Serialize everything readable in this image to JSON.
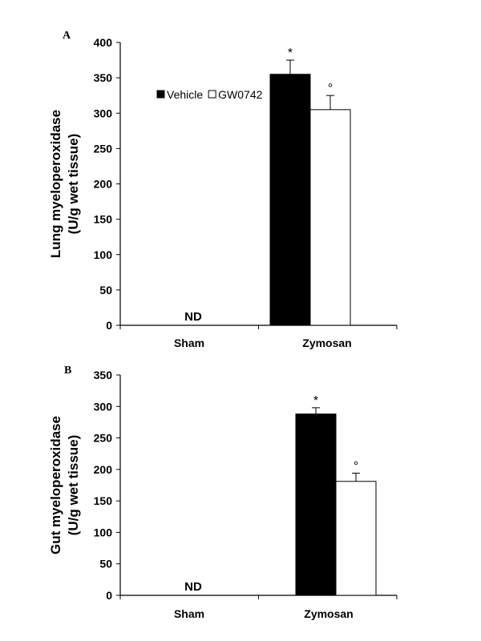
{
  "chart_data": [
    {
      "type": "bar",
      "panel": "A",
      "ylabel": [
        "Lung myeloperoxidase",
        "(U/g wet tissue)"
      ],
      "ylim": [
        0,
        400
      ],
      "yticks": [
        0,
        50,
        100,
        150,
        200,
        250,
        300,
        350,
        400
      ],
      "categories": [
        "Sham",
        "Zymosan"
      ],
      "series": [
        {
          "name": "Vehicle",
          "color": "#000000",
          "values": [
            null,
            355
          ],
          "errors": [
            null,
            20
          ],
          "markers": [
            "",
            "*"
          ]
        },
        {
          "name": "GW0742",
          "color": "#ffffff",
          "values": [
            null,
            305
          ],
          "errors": [
            null,
            20
          ],
          "markers": [
            "",
            "°"
          ]
        }
      ],
      "annotations": [
        {
          "category": "Sham",
          "text": "ND"
        }
      ],
      "legend": "inside-top-left"
    },
    {
      "type": "bar",
      "panel": "B",
      "ylabel": [
        "Gut myeloperoxidase",
        "(U/g wet tissue)"
      ],
      "ylim": [
        0,
        350
      ],
      "yticks": [
        0,
        50,
        100,
        150,
        200,
        250,
        300,
        350
      ],
      "categories": [
        "Sham",
        "Zymosan"
      ],
      "series": [
        {
          "name": "Vehicle",
          "color": "#000000",
          "values": [
            null,
            288
          ],
          "errors": [
            null,
            10
          ],
          "markers": [
            "",
            "*"
          ]
        },
        {
          "name": "GW0742",
          "color": "#ffffff",
          "values": [
            null,
            181
          ],
          "errors": [
            null,
            13
          ],
          "markers": [
            "",
            "°"
          ]
        }
      ],
      "annotations": [
        {
          "category": "Sham",
          "text": "ND"
        }
      ]
    }
  ]
}
